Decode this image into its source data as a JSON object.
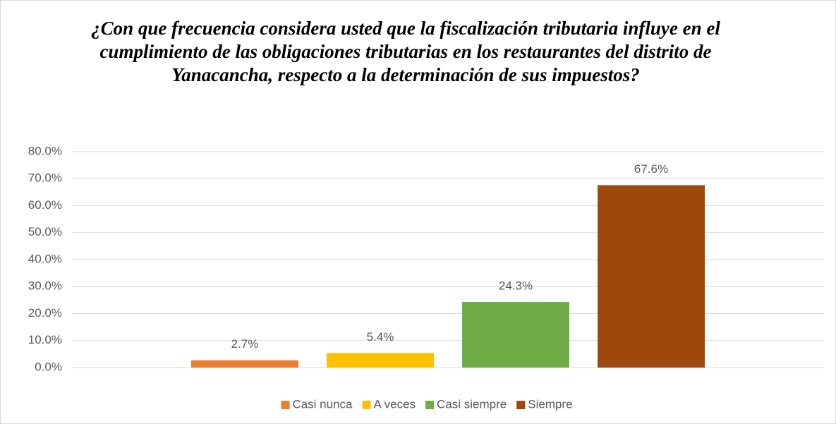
{
  "chart_data": {
    "type": "bar",
    "title": "¿Con que frecuencia considera usted que la fiscalización tributaria influye en el cumplimiento de las obligaciones tributarias en los restaurantes del distrito de Yanacancha, respecto a la determinación de sus impuestos?",
    "series": [
      {
        "name": "Casi nunca",
        "color": "#ed7d31",
        "values": [
          2.7
        ],
        "value_labels": [
          "2.7%"
        ]
      },
      {
        "name": "A veces",
        "color": "#ffc000",
        "values": [
          5.4
        ],
        "value_labels": [
          "5.4%"
        ]
      },
      {
        "name": "Casi siempre",
        "color": "#70ad47",
        "values": [
          24.3
        ],
        "value_labels": [
          "24.3%"
        ]
      },
      {
        "name": "Siempre",
        "color": "#9e480e",
        "values": [
          67.6
        ],
        "value_labels": [
          "67.6%"
        ]
      }
    ],
    "ylim": [
      0,
      80
    ],
    "yticks": [
      {
        "value": 0,
        "label": "0.0%"
      },
      {
        "value": 10,
        "label": "10.0%"
      },
      {
        "value": 20,
        "label": "20.0%"
      },
      {
        "value": 30,
        "label": "30.0%"
      },
      {
        "value": 40,
        "label": "40.0%"
      },
      {
        "value": 50,
        "label": "50.0%"
      },
      {
        "value": 60,
        "label": "60.0%"
      },
      {
        "value": 70,
        "label": "70.0%"
      },
      {
        "value": 80,
        "label": "80.0%"
      }
    ],
    "grid": true,
    "legend": "bottom"
  }
}
